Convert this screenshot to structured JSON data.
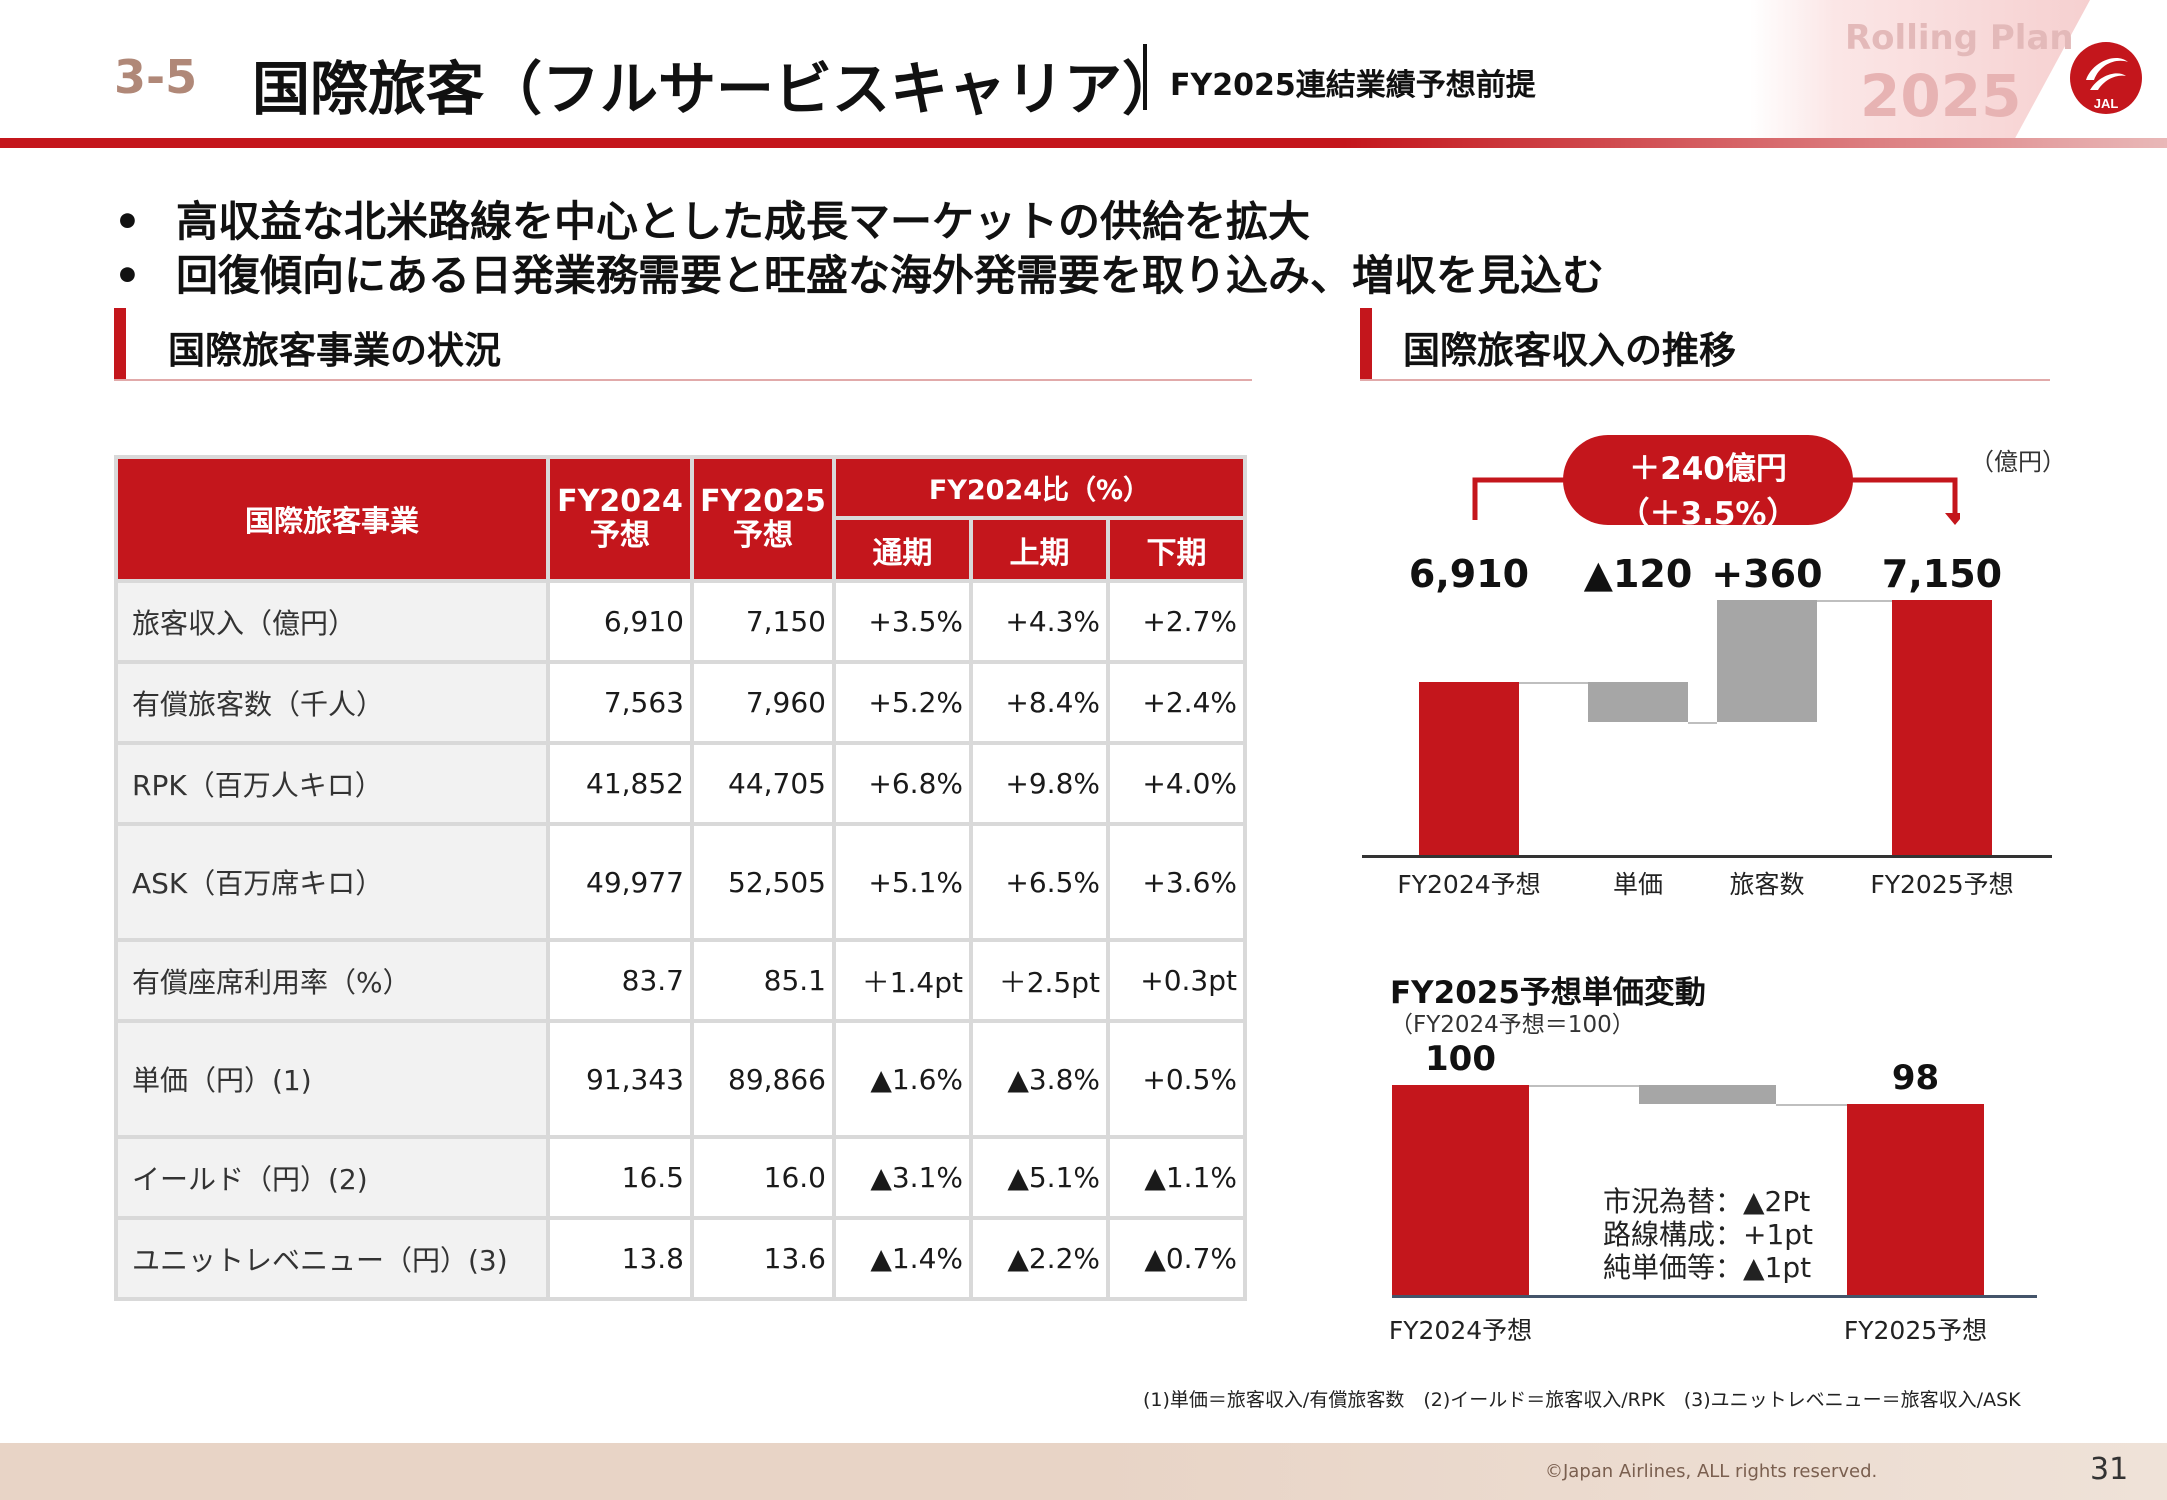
{
  "header": {
    "section_number": "3-5",
    "title": "国際旅客（フルサービスキャリア）",
    "subtitle": "FY2025連結業績予想前提",
    "plan_badge_line1": "Rolling Plan",
    "plan_badge_line2": "2025",
    "logo_text": "JAL"
  },
  "bullets": [
    "高収益な北米路線を中心とした成長マーケットの供給を拡大",
    "回復傾向にある日発業務需要と旺盛な海外発需要を取り込み、増収を見込む"
  ],
  "bullet_marker": "•",
  "left_section_title": "国際旅客事業の状況",
  "right_section_title": "国際旅客収入の推移",
  "table": {
    "header_main": "国際旅客事業",
    "header_fy2024": "FY2024\n予想",
    "header_fy2025": "FY2025\n予想",
    "header_group": "FY2024比（%）",
    "sub_headers": [
      "通期",
      "上期",
      "下期"
    ],
    "rows": [
      {
        "label": "旅客収入（億円）",
        "fy2024": "6,910",
        "fy2025": "7,150",
        "full": "+3.5%",
        "h1": "+4.3%",
        "h2": "+2.7%"
      },
      {
        "label": "有償旅客数（千人）",
        "fy2024": "7,563",
        "fy2025": "7,960",
        "full": "+5.2%",
        "h1": "+8.4%",
        "h2": "+2.4%"
      },
      {
        "label": "RPK（百万人キロ）",
        "fy2024": "41,852",
        "fy2025": "44,705",
        "full": "+6.8%",
        "h1": "+9.8%",
        "h2": "+4.0%"
      },
      {
        "label": "ASK（百万席キロ）",
        "fy2024": "49,977",
        "fy2025": "52,505",
        "full": "+5.1%",
        "h1": "+6.5%",
        "h2": "+3.6%"
      },
      {
        "label": "有償座席利用率（%）",
        "fy2024": "83.7",
        "fy2025": "85.1",
        "full": "＋1.4pt",
        "h1": "＋2.5pt",
        "h2": "+0.3pt"
      },
      {
        "label": "単価（円）(1)",
        "fy2024": "91,343",
        "fy2025": "89,866",
        "full": "▲1.6%",
        "h1": "▲3.8%",
        "h2": "+0.5%"
      },
      {
        "label": "イールド（円）(2)",
        "fy2024": "16.5",
        "fy2025": "16.0",
        "full": "▲3.1%",
        "h1": "▲5.1%",
        "h2": "▲1.1%"
      },
      {
        "label": "ユニットレベニュー（円）(3)",
        "fy2024": "13.8",
        "fy2025": "13.6",
        "full": "▲1.4%",
        "h1": "▲2.2%",
        "h2": "▲0.7%"
      }
    ]
  },
  "chart_data": [
    {
      "type": "bar",
      "subtype": "waterfall",
      "unit_label": "（億円）",
      "categories": [
        "FY2024予想",
        "単価",
        "旅客数",
        "FY2025予想"
      ],
      "values": [
        6910,
        -120,
        360,
        7150
      ],
      "value_labels": [
        "6,910",
        "▲120",
        "+360",
        "7,150"
      ],
      "kinds": [
        "total",
        "decrease",
        "increase",
        "total"
      ],
      "colors": {
        "total": "#c4161c",
        "change": "#a6a6a6"
      },
      "callout_line1": "＋240億円",
      "callout_line2": "（＋3.5%）",
      "ylim": [
        0,
        7400
      ]
    },
    {
      "type": "bar",
      "subtype": "waterfall",
      "title": "FY2025予想単価変動",
      "subtitle": "（FY2024予想＝100）",
      "categories": [
        "FY2024予想",
        "FY2025予想"
      ],
      "values": [
        100,
        98
      ],
      "value_labels": [
        "100",
        "98"
      ],
      "step_change": -2,
      "annotations": [
        "市況為替：▲2Pt",
        "路線構成：+1pt",
        "純単価等：▲1pt"
      ],
      "colors": {
        "total": "#c4161c",
        "change": "#a6a6a6"
      },
      "ylim": [
        0,
        104
      ]
    }
  ],
  "footnote": "(1)単価＝旅客収入/有償旅客数　(2)イールド＝旅客収入/RPK　(3)ユニットレベニュー＝旅客収入/ASK",
  "copyright": "©Japan Airlines, ALL rights reserved.",
  "page_number": "31"
}
